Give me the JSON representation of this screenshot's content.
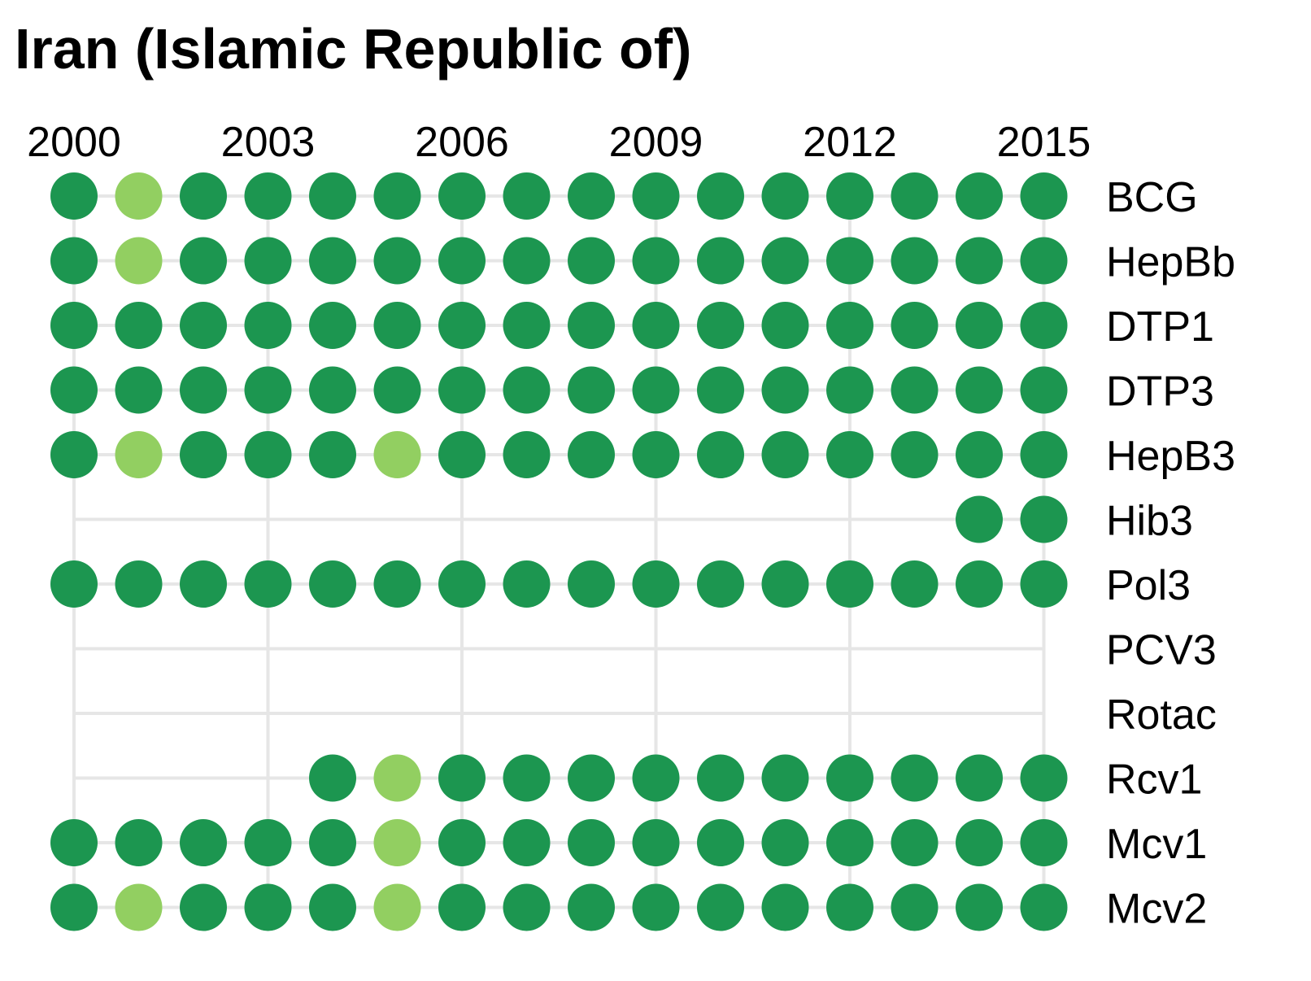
{
  "chart_data": {
    "type": "dot-matrix",
    "title": "Iran (Islamic Republic of)",
    "years": [
      2000,
      2001,
      2002,
      2003,
      2004,
      2005,
      2006,
      2007,
      2008,
      2009,
      2010,
      2011,
      2012,
      2013,
      2014,
      2015
    ],
    "year_tick_labels": [
      "2000",
      "2003",
      "2006",
      "2009",
      "2012",
      "2015"
    ],
    "colors": {
      "high": "#1c9650",
      "low": "#92cf61",
      "grid": "#e6e6e6"
    },
    "levels": {
      "high": "full coverage (dark green dot)",
      "low": "lower coverage (light green dot)"
    },
    "rows": [
      {
        "name": "BCG",
        "values": [
          "high",
          "low",
          "high",
          "high",
          "high",
          "high",
          "high",
          "high",
          "high",
          "high",
          "high",
          "high",
          "high",
          "high",
          "high",
          "high"
        ]
      },
      {
        "name": "HepBb",
        "values": [
          "high",
          "low",
          "high",
          "high",
          "high",
          "high",
          "high",
          "high",
          "high",
          "high",
          "high",
          "high",
          "high",
          "high",
          "high",
          "high"
        ]
      },
      {
        "name": "DTP1",
        "values": [
          "high",
          "high",
          "high",
          "high",
          "high",
          "high",
          "high",
          "high",
          "high",
          "high",
          "high",
          "high",
          "high",
          "high",
          "high",
          "high"
        ]
      },
      {
        "name": "DTP3",
        "values": [
          "high",
          "high",
          "high",
          "high",
          "high",
          "high",
          "high",
          "high",
          "high",
          "high",
          "high",
          "high",
          "high",
          "high",
          "high",
          "high"
        ]
      },
      {
        "name": "HepB3",
        "values": [
          "high",
          "low",
          "high",
          "high",
          "high",
          "low",
          "high",
          "high",
          "high",
          "high",
          "high",
          "high",
          "high",
          "high",
          "high",
          "high"
        ]
      },
      {
        "name": "Hib3",
        "values": [
          null,
          null,
          null,
          null,
          null,
          null,
          null,
          null,
          null,
          null,
          null,
          null,
          null,
          null,
          "high",
          "high"
        ]
      },
      {
        "name": "Pol3",
        "values": [
          "high",
          "high",
          "high",
          "high",
          "high",
          "high",
          "high",
          "high",
          "high",
          "high",
          "high",
          "high",
          "high",
          "high",
          "high",
          "high"
        ]
      },
      {
        "name": "PCV3",
        "values": [
          null,
          null,
          null,
          null,
          null,
          null,
          null,
          null,
          null,
          null,
          null,
          null,
          null,
          null,
          null,
          null
        ]
      },
      {
        "name": "Rotac",
        "values": [
          null,
          null,
          null,
          null,
          null,
          null,
          null,
          null,
          null,
          null,
          null,
          null,
          null,
          null,
          null,
          null
        ]
      },
      {
        "name": "Rcv1",
        "values": [
          null,
          null,
          null,
          null,
          "high",
          "low",
          "high",
          "high",
          "high",
          "high",
          "high",
          "high",
          "high",
          "high",
          "high",
          "high"
        ]
      },
      {
        "name": "Mcv1",
        "values": [
          "high",
          "high",
          "high",
          "high",
          "high",
          "low",
          "high",
          "high",
          "high",
          "high",
          "high",
          "high",
          "high",
          "high",
          "high",
          "high"
        ]
      },
      {
        "name": "Mcv2",
        "values": [
          "high",
          "low",
          "high",
          "high",
          "high",
          "low",
          "high",
          "high",
          "high",
          "high",
          "high",
          "high",
          "high",
          "high",
          "high",
          "high"
        ]
      }
    ]
  }
}
